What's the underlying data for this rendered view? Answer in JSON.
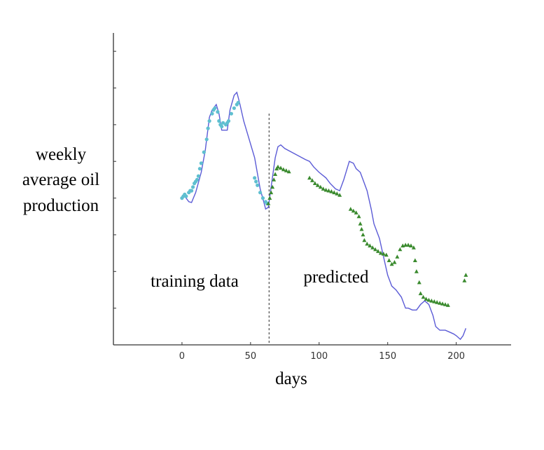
{
  "chart_data": {
    "type": "line",
    "title": "",
    "xlabel": "days",
    "ylabel_lines": [
      "weekly",
      "average oil",
      "production"
    ],
    "xlim": [
      -50,
      240
    ],
    "ylim": [
      0,
      8.5
    ],
    "x_ticks": [
      0,
      50,
      100,
      150,
      200
    ],
    "y_ticks_count": 8,
    "split_day": 63.5,
    "annotations": [
      "training data",
      "predicted"
    ],
    "grid": false,
    "series": [
      {
        "style": "line",
        "color": "#5b5bd6",
        "points": [
          [
            0,
            4
          ],
          [
            2,
            4.05
          ],
          [
            5,
            3.9
          ],
          [
            7,
            3.88
          ],
          [
            10,
            4.15
          ],
          [
            14,
            4.7
          ],
          [
            17,
            5.3
          ],
          [
            20,
            6.2
          ],
          [
            22,
            6.4
          ],
          [
            25,
            6.55
          ],
          [
            27,
            6.3
          ],
          [
            29,
            5.85
          ],
          [
            31,
            5.85
          ],
          [
            33,
            5.85
          ],
          [
            35,
            6.4
          ],
          [
            38,
            6.8
          ],
          [
            40,
            6.88
          ],
          [
            42,
            6.6
          ],
          [
            45,
            6.1
          ],
          [
            49,
            5.6
          ],
          [
            53,
            5.1
          ],
          [
            57,
            4.25
          ],
          [
            60,
            3.85
          ],
          [
            61,
            3.7
          ],
          [
            63,
            3.75
          ],
          [
            65,
            4.3
          ],
          [
            68,
            5.1
          ],
          [
            70,
            5.4
          ],
          [
            72,
            5.45
          ],
          [
            75,
            5.35
          ],
          [
            80,
            5.25
          ],
          [
            90,
            5.05
          ],
          [
            93,
            5.0
          ],
          [
            96,
            4.85
          ],
          [
            100,
            4.7
          ],
          [
            105,
            4.55
          ],
          [
            108,
            4.4
          ],
          [
            112,
            4.25
          ],
          [
            115,
            4.2
          ],
          [
            118,
            4.5
          ],
          [
            122,
            5.0
          ],
          [
            125,
            4.95
          ],
          [
            127,
            4.8
          ],
          [
            130,
            4.7
          ],
          [
            132,
            4.5
          ],
          [
            135,
            4.2
          ],
          [
            138,
            3.7
          ],
          [
            140,
            3.3
          ],
          [
            144,
            2.9
          ],
          [
            147,
            2.4
          ],
          [
            150,
            1.9
          ],
          [
            153,
            1.6
          ],
          [
            156,
            1.5
          ],
          [
            160,
            1.3
          ],
          [
            163,
            1.0
          ],
          [
            165,
            1.0
          ],
          [
            168,
            0.95
          ],
          [
            171,
            0.95
          ],
          [
            174,
            1.1
          ],
          [
            177,
            1.2
          ],
          [
            180,
            1.1
          ],
          [
            183,
            0.8
          ],
          [
            185,
            0.5
          ],
          [
            188,
            0.4
          ],
          [
            192,
            0.4
          ],
          [
            195,
            0.35
          ],
          [
            198,
            0.3
          ],
          [
            200,
            0.25
          ],
          [
            203,
            0.15
          ],
          [
            205,
            0.25
          ],
          [
            207,
            0.45
          ]
        ]
      },
      {
        "style": "dots",
        "color": "#5fbfd0",
        "points": [
          [
            0,
            4
          ],
          [
            1,
            4.05
          ],
          [
            2,
            4.1
          ],
          [
            3,
            4.05
          ],
          [
            5,
            4.15
          ],
          [
            6,
            4.2
          ],
          [
            7,
            4.2
          ],
          [
            8,
            4.3
          ],
          [
            9,
            4.4
          ],
          [
            10,
            4.45
          ],
          [
            11,
            4.5
          ],
          [
            12,
            4.6
          ],
          [
            13,
            4.8
          ],
          [
            14,
            4.95
          ],
          [
            16,
            5.25
          ],
          [
            18,
            5.6
          ],
          [
            19,
            5.9
          ],
          [
            20,
            6.1
          ],
          [
            22,
            6.3
          ],
          [
            23,
            6.4
          ],
          [
            24,
            6.45
          ],
          [
            26,
            6.35
          ],
          [
            27,
            6.1
          ],
          [
            28,
            6.0
          ],
          [
            29,
            5.95
          ],
          [
            30,
            6.05
          ],
          [
            32,
            6.0
          ],
          [
            33,
            6.05
          ],
          [
            34,
            6.1
          ],
          [
            36,
            6.3
          ],
          [
            38,
            6.45
          ],
          [
            40,
            6.55
          ],
          [
            41,
            6.6
          ],
          [
            53,
            4.55
          ],
          [
            54,
            4.45
          ],
          [
            55,
            4.35
          ],
          [
            57,
            4.15
          ],
          [
            59,
            4.0
          ],
          [
            61,
            3.9
          ],
          [
            62,
            3.85
          ]
        ]
      },
      {
        "style": "triangles",
        "color": "#3a8a2e",
        "points": [
          [
            63,
            3.85
          ],
          [
            64,
            4.0
          ],
          [
            65,
            4.15
          ],
          [
            66,
            4.3
          ],
          [
            67,
            4.5
          ],
          [
            68,
            4.65
          ],
          [
            69,
            4.8
          ],
          [
            70,
            4.85
          ],
          [
            72,
            4.82
          ],
          [
            74,
            4.78
          ],
          [
            76,
            4.75
          ],
          [
            78,
            4.72
          ],
          [
            93,
            4.55
          ],
          [
            95,
            4.48
          ],
          [
            97,
            4.4
          ],
          [
            99,
            4.35
          ],
          [
            101,
            4.3
          ],
          [
            103,
            4.25
          ],
          [
            105,
            4.22
          ],
          [
            107,
            4.2
          ],
          [
            109,
            4.18
          ],
          [
            111,
            4.15
          ],
          [
            113,
            4.12
          ],
          [
            115,
            4.08
          ],
          [
            123,
            3.7
          ],
          [
            125,
            3.65
          ],
          [
            127,
            3.6
          ],
          [
            129,
            3.5
          ],
          [
            130,
            3.3
          ],
          [
            131,
            3.15
          ],
          [
            132,
            3.0
          ],
          [
            133,
            2.85
          ],
          [
            135,
            2.75
          ],
          [
            137,
            2.7
          ],
          [
            139,
            2.65
          ],
          [
            141,
            2.6
          ],
          [
            143,
            2.55
          ],
          [
            145,
            2.5
          ],
          [
            147,
            2.48
          ],
          [
            149,
            2.45
          ],
          [
            151,
            2.3
          ],
          [
            153,
            2.2
          ],
          [
            155,
            2.25
          ],
          [
            157,
            2.4
          ],
          [
            159,
            2.6
          ],
          [
            161,
            2.7
          ],
          [
            163,
            2.72
          ],
          [
            165,
            2.72
          ],
          [
            167,
            2.7
          ],
          [
            169,
            2.65
          ],
          [
            170,
            2.3
          ],
          [
            171,
            2.0
          ],
          [
            173,
            1.7
          ],
          [
            174,
            1.4
          ],
          [
            176,
            1.3
          ],
          [
            178,
            1.25
          ],
          [
            180,
            1.22
          ],
          [
            182,
            1.2
          ],
          [
            184,
            1.18
          ],
          [
            186,
            1.16
          ],
          [
            188,
            1.14
          ],
          [
            190,
            1.12
          ],
          [
            192,
            1.1
          ],
          [
            194,
            1.08
          ],
          [
            206,
            1.75
          ],
          [
            207,
            1.9
          ]
        ]
      }
    ]
  }
}
